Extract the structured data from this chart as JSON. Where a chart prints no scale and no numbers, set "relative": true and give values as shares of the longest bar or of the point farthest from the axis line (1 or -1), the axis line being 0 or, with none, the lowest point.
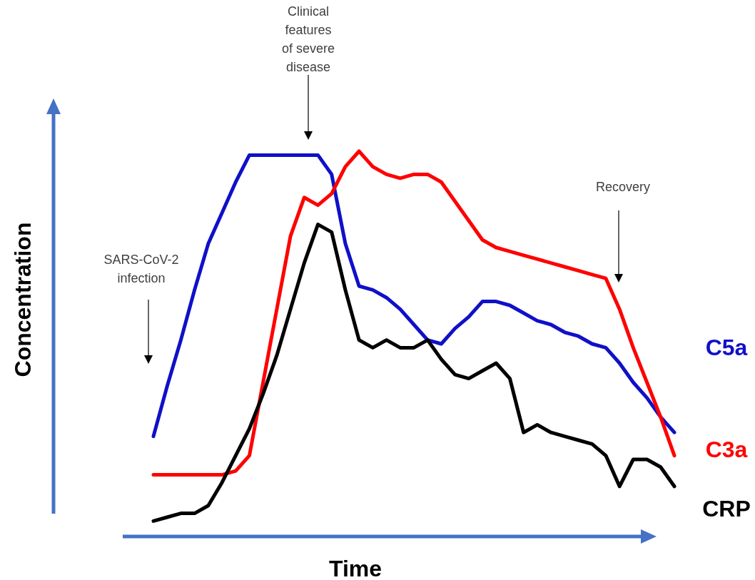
{
  "chart_data": {
    "type": "line",
    "relative": true,
    "xlabel": "Time",
    "ylabel": "Concentration",
    "categories": [
      null,
      null,
      null,
      null,
      null,
      null,
      null,
      null,
      null,
      null,
      null,
      null,
      null,
      null,
      null,
      null,
      null,
      null,
      null,
      null,
      null,
      null,
      null,
      null,
      null,
      null,
      null,
      null,
      null,
      null,
      null,
      null,
      null,
      null,
      null,
      null,
      null,
      null,
      null
    ],
    "series": [
      {
        "name": "C5a",
        "color": "#1010c8",
        "values": [
          0.26,
          0.39,
          0.51,
          0.64,
          0.76,
          0.84,
          0.92,
          0.99,
          0.99,
          0.99,
          0.99,
          0.99,
          0.99,
          0.94,
          0.76,
          0.65,
          0.64,
          0.62,
          0.59,
          0.55,
          0.51,
          0.5,
          0.54,
          0.57,
          0.61,
          0.61,
          0.6,
          0.58,
          0.56,
          0.55,
          0.53,
          0.52,
          0.5,
          0.49,
          0.45,
          0.4,
          0.36,
          0.31,
          0.27
        ]
      },
      {
        "name": "C3a",
        "color": "#ff0000",
        "values": [
          0.16,
          0.16,
          0.16,
          0.16,
          0.16,
          0.16,
          0.17,
          0.21,
          0.4,
          0.59,
          0.78,
          0.88,
          0.86,
          0.89,
          0.96,
          1.0,
          0.96,
          0.94,
          0.93,
          0.94,
          0.94,
          0.92,
          0.87,
          0.82,
          0.77,
          0.75,
          0.74,
          0.73,
          0.72,
          0.71,
          0.7,
          0.69,
          0.68,
          0.67,
          0.59,
          0.49,
          0.4,
          0.31,
          0.21
        ]
      },
      {
        "name": "CRP",
        "color": "#000000",
        "values": [
          0.04,
          0.05,
          0.06,
          0.06,
          0.08,
          0.14,
          0.21,
          0.28,
          0.37,
          0.47,
          0.59,
          0.71,
          0.81,
          0.79,
          0.64,
          0.51,
          0.49,
          0.51,
          0.49,
          0.49,
          0.51,
          0.46,
          0.42,
          0.41,
          0.43,
          0.45,
          0.41,
          0.27,
          0.29,
          0.27,
          0.26,
          0.25,
          0.24,
          0.21,
          0.13,
          0.2,
          0.2,
          0.18,
          0.13
        ]
      }
    ],
    "annotations": [
      "SARS-CoV-2 infection",
      "Clinical features of severe disease",
      "Recovery"
    ]
  }
}
